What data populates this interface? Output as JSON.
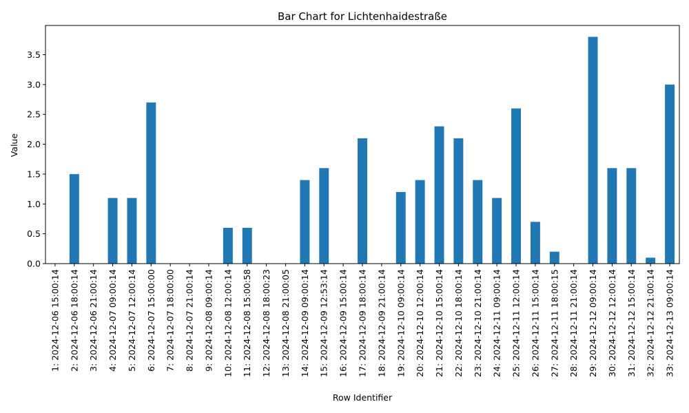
{
  "chart_data": {
    "type": "bar",
    "title": "Bar Chart for Lichtenhaidestraße",
    "xlabel": "Row Identifier",
    "ylabel": "Value",
    "ylim": [
      0,
      3.99
    ],
    "yticks": [
      "0.0",
      "0.5",
      "1.0",
      "1.5",
      "2.0",
      "2.5",
      "3.0",
      "3.5"
    ],
    "legend": "none",
    "grid": false,
    "color": "#1f77b4",
    "categories": [
      "1: 2024-12-06 15:00:14",
      "2: 2024-12-06 18:00:14",
      "3: 2024-12-06 21:00:14",
      "4: 2024-12-07 09:00:14",
      "5: 2024-12-07 12:00:14",
      "6: 2024-12-07 15:00:00",
      "7: 2024-12-07 18:00:00",
      "8: 2024-12-07 21:00:14",
      "9: 2024-12-08 09:00:14",
      "10: 2024-12-08 12:00:14",
      "11: 2024-12-08 15:00:58",
      "12: 2024-12-08 18:00:23",
      "13: 2024-12-08 21:00:05",
      "14: 2024-12-09 09:00:14",
      "15: 2024-12-09 12:53:14",
      "16: 2024-12-09 15:00:14",
      "17: 2024-12-09 18:00:14",
      "18: 2024-12-09 21:00:14",
      "19: 2024-12-10 09:00:14",
      "20: 2024-12-10 12:00:14",
      "21: 2024-12-10 15:00:14",
      "22: 2024-12-10 18:00:14",
      "23: 2024-12-10 21:00:14",
      "24: 2024-12-11 09:00:14",
      "25: 2024-12-11 12:00:14",
      "26: 2024-12-11 15:00:14",
      "27: 2024-12-11 18:00:15",
      "28: 2024-12-11 21:00:14",
      "29: 2024-12-12 09:00:14",
      "30: 2024-12-12 12:00:14",
      "31: 2024-12-12 15:00:14",
      "32: 2024-12-12 21:00:14",
      "33: 2024-12-13 09:00:14"
    ],
    "values": [
      0,
      1.5,
      0,
      1.1,
      1.1,
      2.7,
      0,
      0,
      0,
      0.6,
      0.6,
      0,
      0,
      1.4,
      1.6,
      0,
      2.1,
      0,
      1.2,
      1.4,
      2.3,
      2.1,
      1.4,
      1.1,
      2.6,
      0.7,
      0.2,
      0,
      3.8,
      1.6,
      1.6,
      0.1,
      3.0
    ]
  }
}
